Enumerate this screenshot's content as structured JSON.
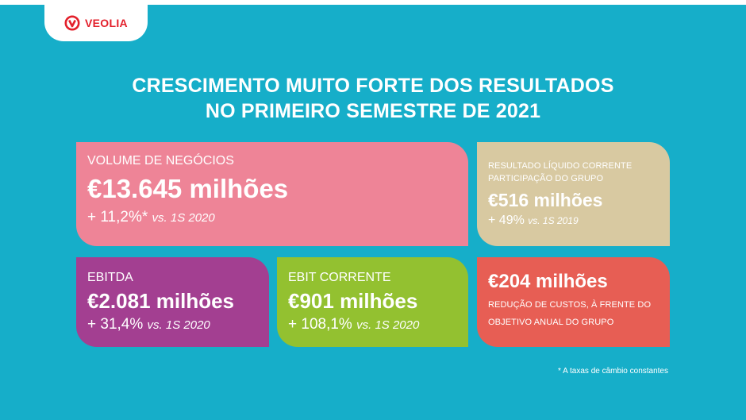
{
  "brand": {
    "name": "VEOLIA",
    "color": "#e3202b"
  },
  "colors": {
    "background": "#16aec9",
    "volume": "#ee8497",
    "result": "#d8c9a1",
    "ebitda": "#a33f91",
    "ebit": "#93c130",
    "cost": "#e75e54"
  },
  "title": {
    "line1": "CRESCIMENTO MUITO FORTE DOS RESULTADOS",
    "line2": "NO PRIMEIRO SEMESTRE DE 2021"
  },
  "cards": {
    "volume": {
      "label": "VOLUME DE NEGÓCIOS",
      "value": "€13.645 milhões",
      "change": "+ 11,2%*",
      "comparison": "vs. 1S 2020"
    },
    "result": {
      "label_line1": "RESULTADO LÍQUIDO CORRENTE",
      "label_line2": "PARTICIPAÇÃO DO GRUPO",
      "value": "€516 milhões",
      "change": "+ 49%",
      "comparison": "vs. 1S 2019"
    },
    "ebitda": {
      "label": "EBITDA",
      "value": "€2.081 milhões",
      "change": "+ 31,4%",
      "comparison": "vs. 1S 2020"
    },
    "ebit": {
      "label": "EBIT CORRENTE",
      "value": "€901 milhões",
      "change": "+ 108,1%",
      "comparison": "vs. 1S 2020"
    },
    "cost": {
      "value": "€204 milhões",
      "desc_line1": "REDUÇÃO DE CUSTOS, À FRENTE DO",
      "desc_line2": "OBJETIVO ANUAL DO GRUPO"
    }
  },
  "footnote": "* A taxas de câmbio constantes"
}
